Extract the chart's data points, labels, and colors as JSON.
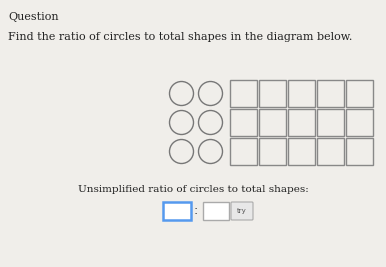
{
  "title": "Question",
  "instruction": "Find the ratio of circles to total shapes in the diagram below.",
  "circles_cols": 2,
  "circles_rows": 3,
  "squares_cols": 5,
  "squares_rows": 3,
  "circle_edge": "#777777",
  "circle_lw": 1.0,
  "square_edge": "#888888",
  "square_lw": 1.0,
  "bg_color": "#f0eeea",
  "answer_label": "Unsimplified ratio of circles to total shapes:",
  "box1_border": "#5599ee",
  "box2_border": "#aaaaaa",
  "try_border": "#aaaaaa",
  "try_label": "try",
  "colon_str": ":"
}
